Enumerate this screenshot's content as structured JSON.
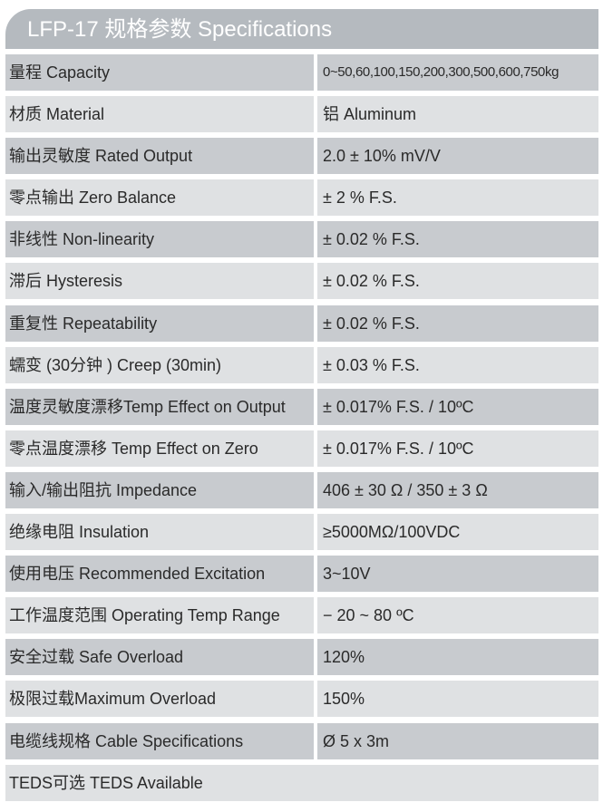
{
  "title": "LFP-17 规格参数 Specifications",
  "rows": [
    {
      "label": "量程 Capacity",
      "value": "0~50,60,100,150,200,300,500,600,750kg"
    },
    {
      "label": "材质 Material",
      "value": "铝 Aluminum"
    },
    {
      "label": "输出灵敏度 Rated Output",
      "value": "2.0 ± 10% mV/V"
    },
    {
      "label": "零点输出  Zero Balance",
      "value": " ± 2 % F.S."
    },
    {
      "label": "非线性 Non-linearity",
      "value": " ± 0.02 % F.S."
    },
    {
      "label": "滞后 Hysteresis",
      "value": " ± 0.02 % F.S."
    },
    {
      "label": "重复性 Repeatability",
      "value": " ± 0.02 % F.S."
    },
    {
      "label": "蠕变 (30分钟 ) Creep (30min)",
      "value": " ± 0.03 % F.S."
    },
    {
      "label": "温度灵敏度漂移Temp Effect on Output",
      "value": " ± 0.017% F.S. / 10ºC"
    },
    {
      "label": "零点温度漂移 Temp Effect on Zero",
      "value": " ± 0.017% F.S. / 10ºC"
    },
    {
      "label": "输入/输出阻抗 Impedance",
      "value": "406 ± 30 Ω  / 350 ± 3 Ω"
    },
    {
      "label": "绝缘电阻  Insulation",
      "value": "≥5000MΩ/100VDC"
    },
    {
      "label": "使用电压 Recommended Excitation",
      "value": "3~10V"
    },
    {
      "label": "工作温度范围 Operating Temp  Range",
      "value": "− 20 ~ 80 ºC"
    },
    {
      "label": "安全过载 Safe Overload",
      "value": "120%"
    },
    {
      "label": "极限过载Maximum Overload",
      "value": "150%"
    },
    {
      "label": "电缆线规格 Cable Specifications",
      "value": "Ø 5 x 3m"
    }
  ],
  "footer": "TEDS可选 TEDS Available"
}
